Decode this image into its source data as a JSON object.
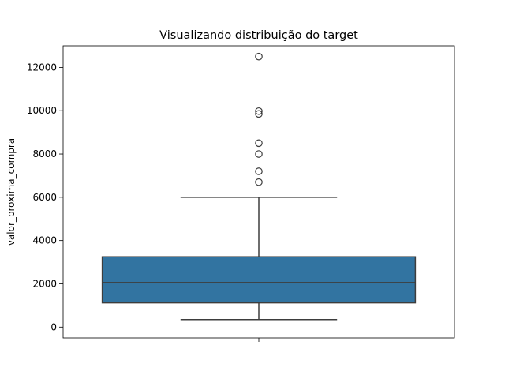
{
  "chart_data": {
    "type": "box",
    "title": "Visualizando distribuição do target",
    "xlabel": "",
    "ylabel": "valor_proxima_compra",
    "ylim": [
      -500,
      13000
    ],
    "yticks": [
      0,
      2000,
      4000,
      6000,
      8000,
      10000,
      12000
    ],
    "grid": false,
    "box": {
      "whisker_low": 350,
      "q1": 1120,
      "median": 2060,
      "q3": 3250,
      "whisker_high": 6000,
      "outliers": [
        6700,
        7200,
        8000,
        8500,
        9850,
        9980,
        12500
      ]
    },
    "colors": {
      "box_fill": "#3274a1",
      "line": "#3d3d3d"
    }
  }
}
